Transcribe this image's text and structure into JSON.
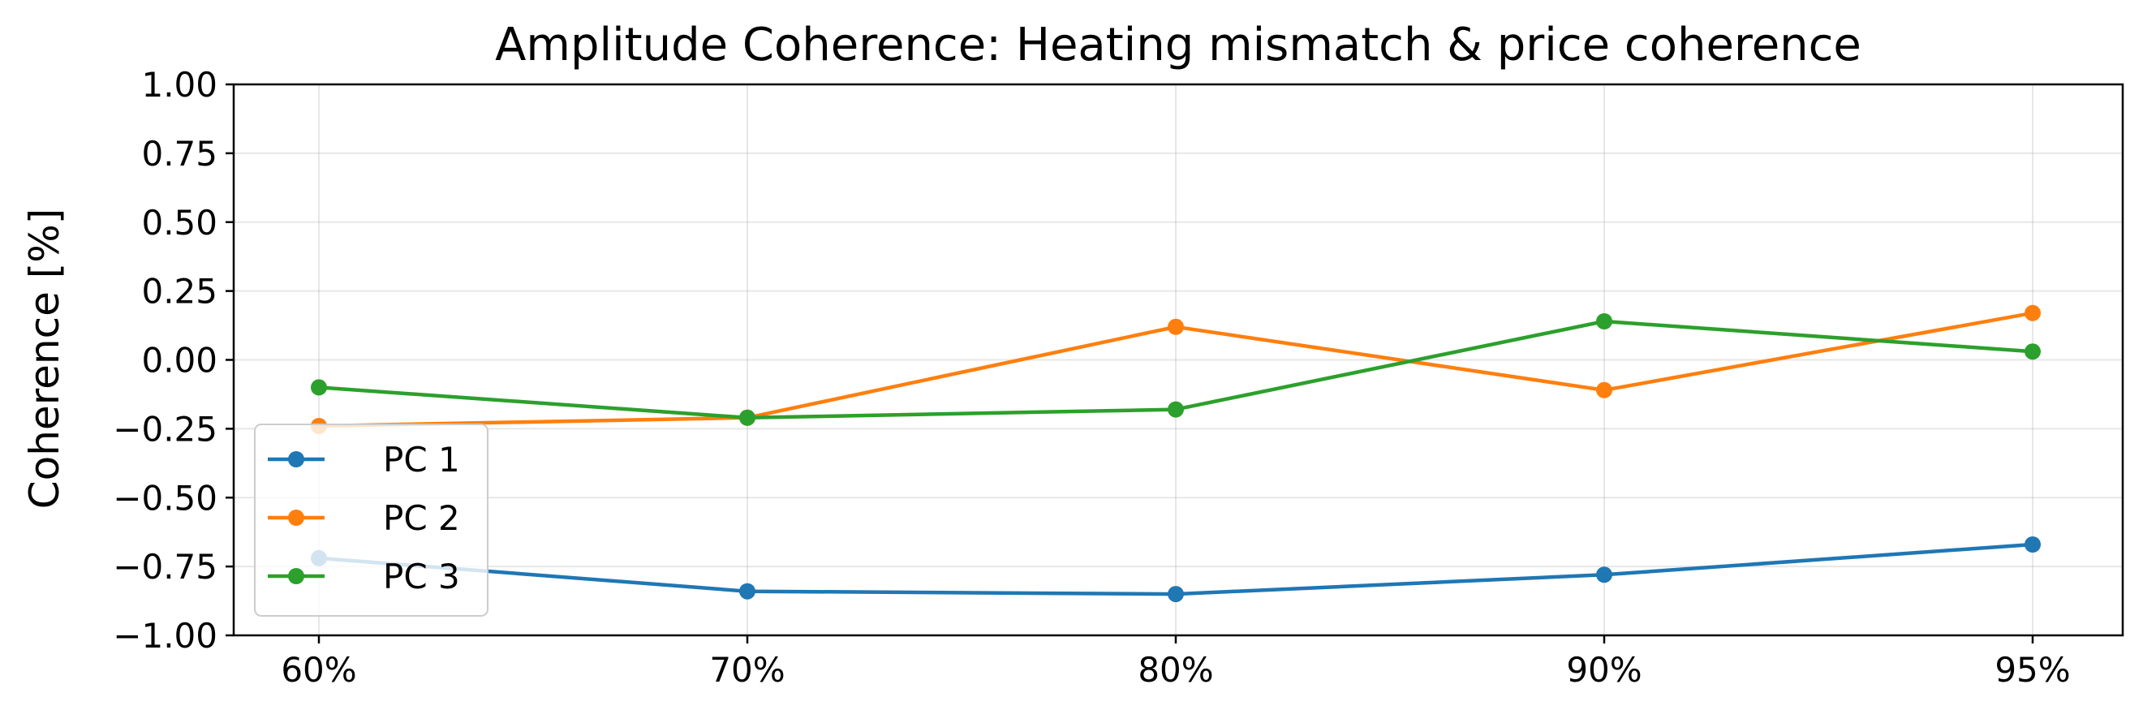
{
  "chart_data": {
    "type": "line",
    "title": "Amplitude Coherence: Heating mismatch & price coherence",
    "xlabel": "",
    "ylabel": "Coherence [%]",
    "categories": [
      "60%",
      "70%",
      "80%",
      "90%",
      "95%"
    ],
    "ylim": [
      -1.0,
      1.0
    ],
    "yticks": [
      "1.00",
      "0.75",
      "0.50",
      "0.25",
      "0.00",
      "−0.25",
      "−0.50",
      "−0.75",
      "−1.00"
    ],
    "ytick_values": [
      1.0,
      0.75,
      0.5,
      0.25,
      0.0,
      -0.25,
      -0.5,
      -0.75,
      -1.0
    ],
    "grid": true,
    "legend_position": "lower-left",
    "series": [
      {
        "name": "PC 1",
        "color": "#1f77b4",
        "marker": "circle",
        "values": [
          -0.72,
          -0.84,
          -0.85,
          -0.78,
          -0.67
        ]
      },
      {
        "name": "PC 2",
        "color": "#ff7f0e",
        "marker": "circle",
        "values": [
          -0.24,
          -0.21,
          0.12,
          -0.11,
          0.17
        ]
      },
      {
        "name": "PC 3",
        "color": "#2ca02c",
        "marker": "circle",
        "values": [
          -0.1,
          -0.21,
          -0.18,
          0.14,
          0.03
        ]
      }
    ]
  }
}
